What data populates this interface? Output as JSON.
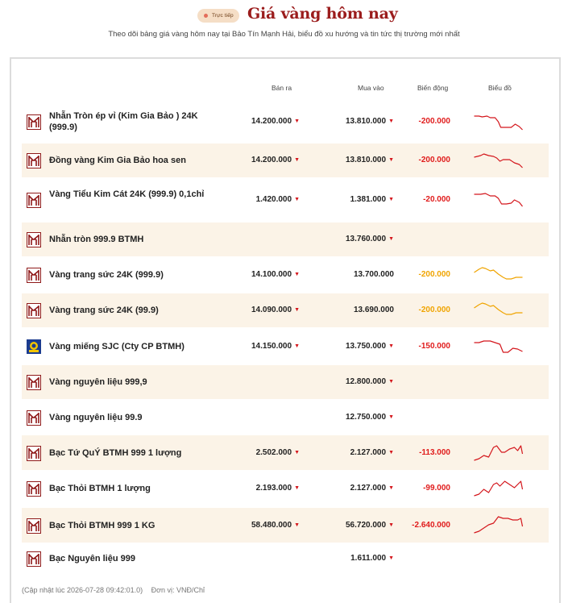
{
  "header": {
    "badge": "Trực tiếp",
    "title": "Giá vàng hôm nay",
    "subtitle": "Theo dõi bảng giá vàng hôm nay tại Bảo Tín Mạnh Hải, biểu đồ xu hướng và tin tức thị trường mới nhất"
  },
  "table": {
    "columns": {
      "sell": "Bán ra",
      "buy": "Mua vào",
      "change": "Biến động",
      "chart": "Biểu đồ"
    },
    "rows": [
      {
        "name": "Nhẫn Tròn ép vỉ (Kim Gia Bảo ) 24K (999.9)",
        "sell": "14.200.000",
        "buy": "13.810.000",
        "change": "-200.000",
        "logo": "btmh-logo",
        "trend_color": "#d4161c"
      },
      {
        "name": "Đồng vàng Kim Gia Bảo hoa sen",
        "sell": "14.200.000",
        "buy": "13.810.000",
        "change": "-200.000",
        "logo": "btmh-logo",
        "trend_color": "#d4161c"
      },
      {
        "name": "Vàng Tiểu Kim Cát 24K (999.9) 0,1chỉ",
        "sell": "1.420.000",
        "buy": "1.381.000",
        "change": "-20.000",
        "logo": "btmh-logo",
        "trend_color": "#d4161c"
      },
      {
        "name": "Nhẫn tròn 999.9 BTMH",
        "sell": "",
        "buy": "13.760.000",
        "change": "",
        "logo": "btmh-logo"
      },
      {
        "name": "Vàng trang sức 24K (999.9)",
        "sell": "14.100.000",
        "buy": "13.700.000",
        "change": "-200.000",
        "logo": "btmh-logo",
        "trend_color": "#f0a400"
      },
      {
        "name": "Vàng trang sức 24K (99.9)",
        "sell": "14.090.000",
        "buy": "13.690.000",
        "change": "-200.000",
        "logo": "btmh-logo",
        "trend_color": "#f0a400"
      },
      {
        "name": "Vàng miếng SJC (Cty CP BTMH)",
        "sell": "14.150.000",
        "buy": "13.750.000",
        "change": "-150.000",
        "logo": "sjc-logo",
        "trend_color": "#d4161c"
      },
      {
        "name": "Vàng nguyên liệu 999,9",
        "sell": "",
        "buy": "12.800.000",
        "change": "",
        "logo": "btmh-logo"
      },
      {
        "name": "Vàng nguyên liệu 99.9",
        "sell": "",
        "buy": "12.750.000",
        "change": "",
        "logo": "btmh-logo"
      },
      {
        "name": "Bạc Tứ QuÝ BTMH 999 1 lượng",
        "sell": "2.502.000",
        "buy": "2.127.000",
        "change": "-113.000",
        "logo": "btmh-logo",
        "trend_color": "#d4161c"
      },
      {
        "name": "Bạc Thỏi BTMH 1 lượng",
        "sell": "2.193.000",
        "buy": "2.127.000",
        "change": "-99.000",
        "logo": "btmh-logo",
        "trend_color": "#d4161c"
      },
      {
        "name": "Bạc Thỏi BTMH 999 1 KG",
        "sell": "58.480.000",
        "buy": "56.720.000",
        "change": "-2.640.000",
        "logo": "btmh-logo",
        "trend_color": "#d4161c"
      },
      {
        "name": "Bạc Nguyên liệu 999",
        "sell": "",
        "buy": "1.611.000",
        "change": "",
        "logo": "btmh-logo"
      }
    ]
  },
  "footer": {
    "updated": "(Cập nhật lúc 2026-07-28 09:42:01.0)",
    "unit": "Đơn vị: VNĐ/Chỉ"
  },
  "colors": {
    "brand_red": "#9b1c1c",
    "down_red": "#e01b1b",
    "flat_yellow": "#f0a400",
    "row_alt": "#fbf3e7"
  }
}
